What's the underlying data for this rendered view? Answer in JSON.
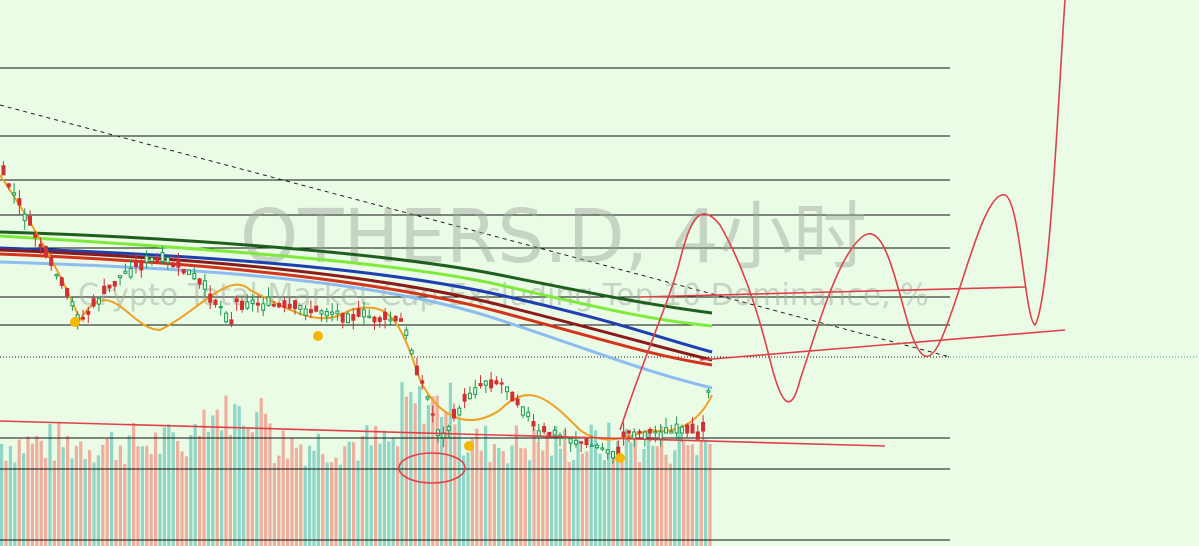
{
  "watermark": {
    "title": "OTHERS.D, 4小时",
    "subtitle": "Crypto Total Market Cap Excluding Top 10 Dominance, %"
  }
}
